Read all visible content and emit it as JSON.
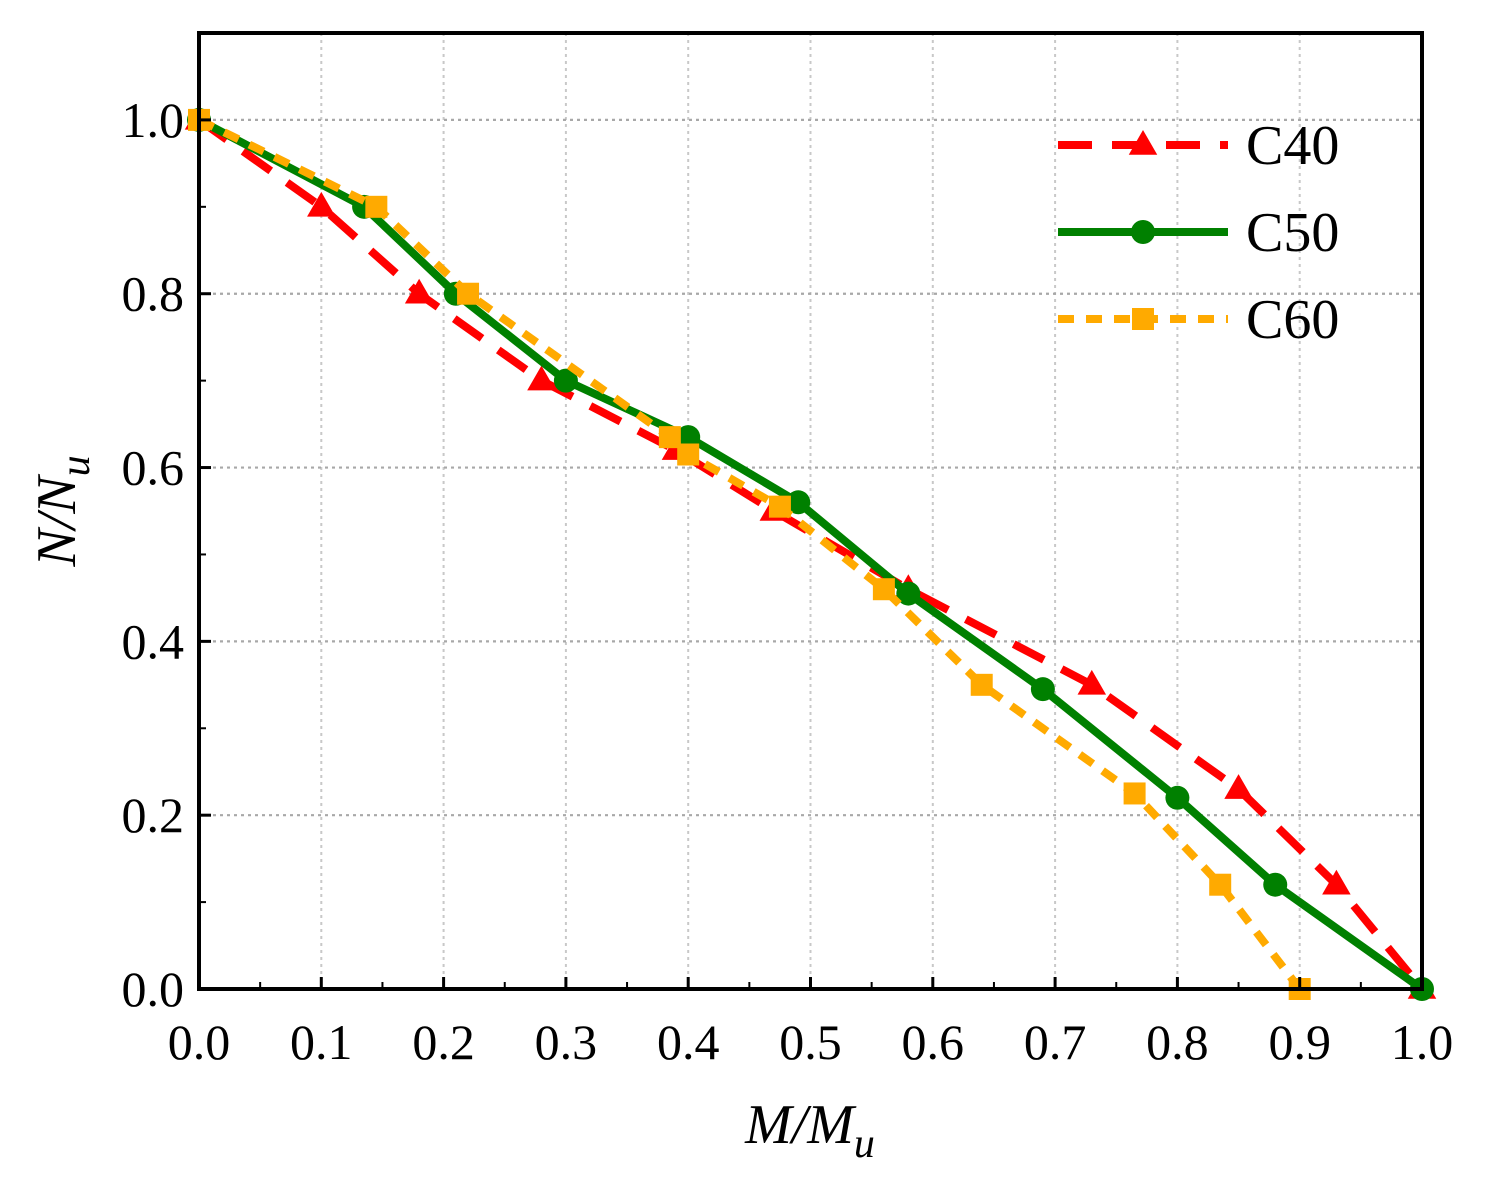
{
  "chart_data": {
    "type": "line",
    "title": "",
    "xlabel": {
      "main": "M/M",
      "sub": "u"
    },
    "ylabel": {
      "main": "N/N",
      "sub": "u"
    },
    "xlim": [
      0.0,
      1.0
    ],
    "ylim": [
      0.0,
      1.1
    ],
    "xticks": [
      "0.0",
      "0.1",
      "0.2",
      "0.3",
      "0.4",
      "0.5",
      "0.6",
      "0.7",
      "0.8",
      "0.9",
      "1.0"
    ],
    "yticks": [
      "0.0",
      "0.2",
      "0.4",
      "0.6",
      "0.8",
      "1.0"
    ],
    "grid": true,
    "legend_position": "top-right",
    "series": [
      {
        "name": "C40",
        "color": "#ff0000",
        "line": "dashed",
        "marker": "triangle",
        "x": [
          0.0,
          0.1,
          0.18,
          0.28,
          0.39,
          0.47,
          0.58,
          0.73,
          0.85,
          0.93,
          1.0
        ],
        "y": [
          1.0,
          0.9,
          0.8,
          0.7,
          0.62,
          0.55,
          0.46,
          0.35,
          0.23,
          0.12,
          0.0
        ]
      },
      {
        "name": "C50",
        "color": "#008000",
        "line": "solid",
        "marker": "circle",
        "x": [
          0.0,
          0.135,
          0.21,
          0.3,
          0.4,
          0.49,
          0.58,
          0.69,
          0.8,
          0.88,
          1.0
        ],
        "y": [
          1.0,
          0.9,
          0.8,
          0.7,
          0.635,
          0.56,
          0.455,
          0.345,
          0.22,
          0.12,
          0.0
        ]
      },
      {
        "name": "C60",
        "color": "#ffaa00",
        "line": "dotted",
        "marker": "square",
        "x": [
          0.0,
          0.145,
          0.22,
          0.385,
          0.4,
          0.475,
          0.56,
          0.64,
          0.765,
          0.835,
          0.9
        ],
        "y": [
          1.0,
          0.9,
          0.8,
          0.635,
          0.615,
          0.555,
          0.46,
          0.35,
          0.225,
          0.12,
          0.0
        ]
      }
    ]
  }
}
